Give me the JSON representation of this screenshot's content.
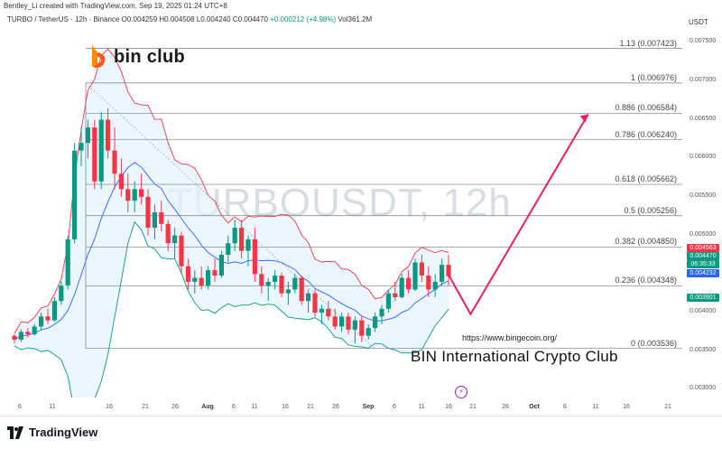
{
  "header": {
    "created_by": "Bentley_Li created with TradingView.com, Sep 19, 2025 01:24 UTC+8",
    "symbol_info": "TURBO / TetherUS · 12h · Binance",
    "ohlc": "O0.004259 H0.004508 L0.004240 C0.004470",
    "change": "+0.000212 (+4.98%)",
    "volume": "Vol361.2M",
    "currency": "USDT"
  },
  "watermark": "TURBOUSDT, 12h",
  "brand": {
    "name": "bin club",
    "url": "https://www.bingecoin.org/",
    "title": "BIN International Crypto Club"
  },
  "price_axis": {
    "labels": [
      "0.007500",
      "0.007000",
      "0.006500",
      "0.006000",
      "0.005500",
      "0.005000",
      "0.004500",
      "0.004000",
      "0.003500",
      "0.003000"
    ],
    "tags": [
      {
        "text": "0.004563",
        "color": "#f23645"
      },
      {
        "text": "0.004470",
        "color": "#089981"
      },
      {
        "text": "06:35:33",
        "color": "#089981"
      },
      {
        "text": "0.004232",
        "color": "#2962ff"
      },
      {
        "text": "0.003901",
        "color": "#089981"
      }
    ]
  },
  "fib_levels": [
    {
      "label": "1.13 (0.007423)",
      "price": 0.007423
    },
    {
      "label": "1 (0.006976)",
      "price": 0.006976
    },
    {
      "label": "0.886 (0.006584)",
      "price": 0.006584
    },
    {
      "label": "0.786 (0.006240)",
      "price": 0.00624
    },
    {
      "label": "0.618 (0.005662)",
      "price": 0.005662
    },
    {
      "label": "0.5 (0.005256)",
      "price": 0.005256
    },
    {
      "label": "0.382 (0.004850)",
      "price": 0.00485
    },
    {
      "label": "0.236 (0.004348)",
      "price": 0.004348
    },
    {
      "label": "0 (0.003536)",
      "price": 0.003536
    }
  ],
  "time_axis": {
    "labels": [
      {
        "text": "6",
        "bold": false
      },
      {
        "text": "11",
        "bold": false
      },
      {
        "text": "16",
        "bold": false
      },
      {
        "text": "21",
        "bold": false
      },
      {
        "text": "26",
        "bold": false
      },
      {
        "text": "Aug",
        "bold": true
      },
      {
        "text": "6",
        "bold": false
      },
      {
        "text": "11",
        "bold": false
      },
      {
        "text": "16",
        "bold": false
      },
      {
        "text": "21",
        "bold": false
      },
      {
        "text": "26",
        "bold": false
      },
      {
        "text": "Sep",
        "bold": true
      },
      {
        "text": "6",
        "bold": false
      },
      {
        "text": "11",
        "bold": false
      },
      {
        "text": "16",
        "bold": false
      },
      {
        "text": "21",
        "bold": false
      },
      {
        "text": "26",
        "bold": false
      },
      {
        "text": "Oct",
        "bold": true
      },
      {
        "text": "6",
        "bold": false
      },
      {
        "text": "11",
        "bold": false
      },
      {
        "text": "16",
        "bold": false
      },
      {
        "text": "21",
        "bold": false
      }
    ]
  },
  "footer": {
    "logo_text": "TradingView"
  },
  "colors": {
    "up": "#089981",
    "down": "#f23645",
    "band_fill": "#e3f2fd",
    "upper_band": "#f23645",
    "lower_band": "#089981",
    "mid_band": "#2962ff",
    "projection": "#e91e63"
  },
  "chart_data": {
    "type": "candlestick",
    "candles": [
      [
        0.0037,
        0.00372,
        0.0036,
        0.00365
      ],
      [
        0.00365,
        0.00378,
        0.00362,
        0.00375
      ],
      [
        0.00375,
        0.0038,
        0.00368,
        0.00372
      ],
      [
        0.00372,
        0.00385,
        0.0037,
        0.00382
      ],
      [
        0.00382,
        0.004,
        0.00378,
        0.00395
      ],
      [
        0.00395,
        0.00405,
        0.00385,
        0.0039
      ],
      [
        0.0039,
        0.0042,
        0.00388,
        0.00415
      ],
      [
        0.00415,
        0.0044,
        0.0041,
        0.00435
      ],
      [
        0.00435,
        0.005,
        0.0043,
        0.00495
      ],
      [
        0.00495,
        0.0062,
        0.0049,
        0.0061
      ],
      [
        0.0061,
        0.0064,
        0.0059,
        0.0062
      ],
      [
        0.0062,
        0.0065,
        0.006,
        0.0064
      ],
      [
        0.0064,
        0.0065,
        0.0056,
        0.0057
      ],
      [
        0.0057,
        0.0066,
        0.0056,
        0.0065
      ],
      [
        0.0065,
        0.00665,
        0.006,
        0.0061
      ],
      [
        0.0061,
        0.0064,
        0.0056,
        0.0058
      ],
      [
        0.0058,
        0.006,
        0.0055,
        0.0056
      ],
      [
        0.0056,
        0.0058,
        0.0053,
        0.00545
      ],
      [
        0.00545,
        0.0057,
        0.0053,
        0.0056
      ],
      [
        0.0056,
        0.0058,
        0.0054,
        0.0055
      ],
      [
        0.0055,
        0.0056,
        0.005,
        0.0051
      ],
      [
        0.0051,
        0.0054,
        0.00495,
        0.0053
      ],
      [
        0.0053,
        0.00545,
        0.00505,
        0.00515
      ],
      [
        0.00515,
        0.0052,
        0.0048,
        0.0049
      ],
      [
        0.0049,
        0.0051,
        0.0047,
        0.005
      ],
      [
        0.005,
        0.00505,
        0.0045,
        0.0046
      ],
      [
        0.0046,
        0.0047,
        0.0043,
        0.0044
      ],
      [
        0.0044,
        0.00455,
        0.00425,
        0.00445
      ],
      [
        0.00445,
        0.0046,
        0.0043,
        0.00435
      ],
      [
        0.00435,
        0.0046,
        0.0043,
        0.00455
      ],
      [
        0.00455,
        0.0047,
        0.0044,
        0.00448
      ],
      [
        0.00448,
        0.0048,
        0.00445,
        0.00475
      ],
      [
        0.00475,
        0.005,
        0.00465,
        0.0049
      ],
      [
        0.0049,
        0.0052,
        0.0048,
        0.0051
      ],
      [
        0.0051,
        0.0052,
        0.0047,
        0.0048
      ],
      [
        0.0048,
        0.005,
        0.0046,
        0.00495
      ],
      [
        0.00495,
        0.0051,
        0.0044,
        0.0045
      ],
      [
        0.0045,
        0.0046,
        0.00425,
        0.00435
      ],
      [
        0.00435,
        0.00445,
        0.00415,
        0.0044
      ],
      [
        0.0044,
        0.00455,
        0.0043,
        0.00448
      ],
      [
        0.00448,
        0.00452,
        0.0042,
        0.00425
      ],
      [
        0.00425,
        0.0044,
        0.0041,
        0.0043
      ],
      [
        0.0043,
        0.0045,
        0.00425,
        0.00445
      ],
      [
        0.00445,
        0.00448,
        0.0041,
        0.00415
      ],
      [
        0.00415,
        0.0043,
        0.004,
        0.00425
      ],
      [
        0.00425,
        0.0043,
        0.00395,
        0.004
      ],
      [
        0.004,
        0.0041,
        0.00385,
        0.00405
      ],
      [
        0.00405,
        0.00415,
        0.0039,
        0.00395
      ],
      [
        0.00395,
        0.00405,
        0.00378,
        0.00382
      ],
      [
        0.00382,
        0.004,
        0.00375,
        0.00395
      ],
      [
        0.00395,
        0.004,
        0.00372,
        0.00378
      ],
      [
        0.00378,
        0.00395,
        0.0036,
        0.0039
      ],
      [
        0.0039,
        0.00395,
        0.00362,
        0.0037
      ],
      [
        0.0037,
        0.00385,
        0.00365,
        0.0038
      ],
      [
        0.0038,
        0.004,
        0.00375,
        0.00395
      ],
      [
        0.00395,
        0.0041,
        0.00385,
        0.00405
      ],
      [
        0.00405,
        0.0043,
        0.004,
        0.00425
      ],
      [
        0.00425,
        0.0044,
        0.00415,
        0.0042
      ],
      [
        0.0042,
        0.0045,
        0.00418,
        0.00445
      ],
      [
        0.00445,
        0.00455,
        0.00425,
        0.0043
      ],
      [
        0.0043,
        0.0047,
        0.00428,
        0.00465
      ],
      [
        0.00465,
        0.00475,
        0.0044,
        0.00448
      ],
      [
        0.00448,
        0.0046,
        0.0042,
        0.0043
      ],
      [
        0.0043,
        0.0045,
        0.0042,
        0.0044
      ],
      [
        0.0044,
        0.0047,
        0.00435,
        0.00462
      ],
      [
        0.00462,
        0.00475,
        0.00435,
        0.00447
      ]
    ],
    "projection": [
      [
        0,
        0.00449
      ],
      [
        6,
        0.00398
      ],
      [
        38,
        0.00657
      ]
    ],
    "ylim": [
      0.0029,
      0.0077
    ]
  }
}
